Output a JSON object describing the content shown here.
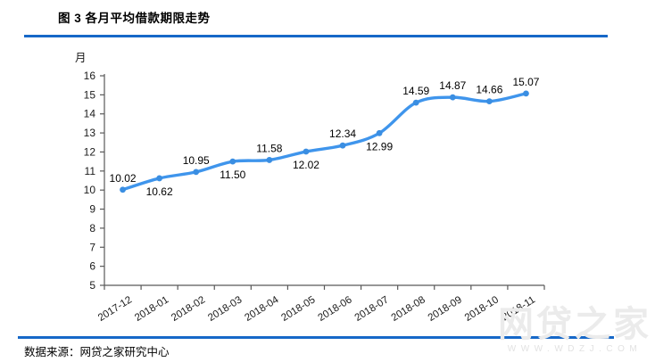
{
  "figure": {
    "title": "图 3 各月平均借款期限走势",
    "source_note": "数据来源：网贷之家研究中心",
    "watermark_brand": "网贷之家",
    "watermark_url": "WWW.WDZJ.COM"
  },
  "chart_data": {
    "type": "line",
    "title": "图 3 各月平均借款期限走势",
    "xlabel": "",
    "ylabel": "月",
    "categories": [
      "2017-12",
      "2018-01",
      "2018-02",
      "2018-03",
      "2018-04",
      "2018-05",
      "2018-06",
      "2018-07",
      "2018-08",
      "2018-09",
      "2018-10",
      "2018-11"
    ],
    "values": [
      10.02,
      10.62,
      10.95,
      11.5,
      11.58,
      12.02,
      12.34,
      12.99,
      14.59,
      14.87,
      14.66,
      15.07
    ],
    "label_sides": [
      "above",
      "below",
      "above",
      "below",
      "above",
      "below",
      "above",
      "below",
      "above",
      "above",
      "above",
      "above"
    ],
    "ylim": [
      5,
      16
    ],
    "ytick_step": 1,
    "grid": false,
    "legend": "none",
    "line_color": "#3f95ec",
    "marker_color": "#3a8ee2",
    "axis_color": "#595959",
    "tick_text_color": "#1a1a1a",
    "label_text_color": "#000000",
    "accent_rule_color": "#1668c8",
    "watermark_color": "#ebebeb"
  }
}
